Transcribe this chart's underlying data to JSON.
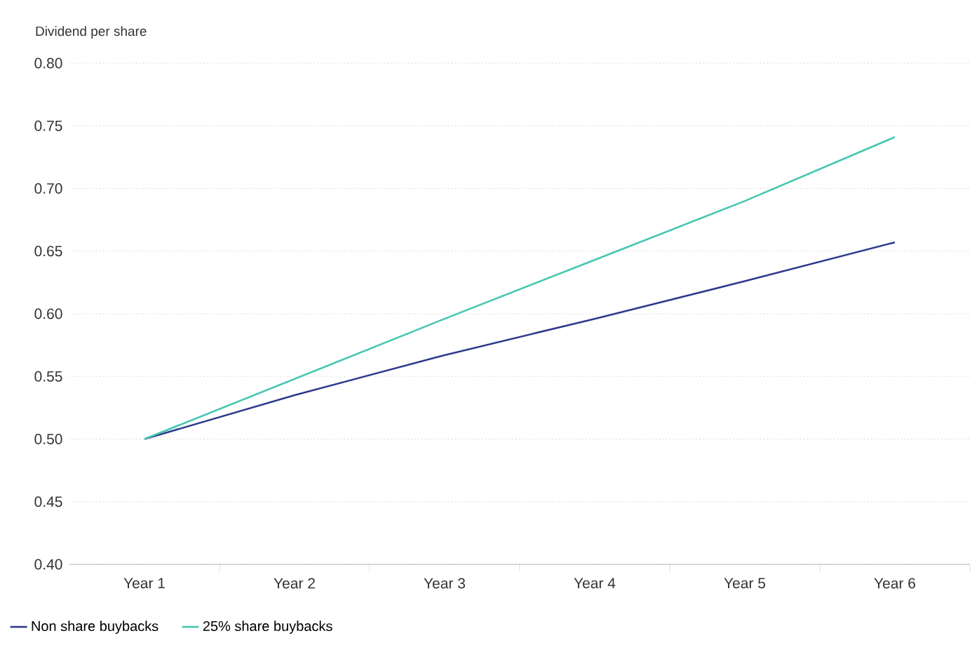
{
  "chart_data": {
    "type": "line",
    "ylabel": "Dividend per share",
    "categories": [
      "Year 1",
      "Year 2",
      "Year 3",
      "Year 4",
      "Year 5",
      "Year 6"
    ],
    "series": [
      {
        "name": "Non share buybacks",
        "color": "#2e3a8c",
        "values": [
          0.5,
          0.535,
          0.567,
          0.596,
          0.626,
          0.657
        ]
      },
      {
        "name": "25% share buybacks",
        "color": "#45c7b0",
        "values": [
          0.5,
          0.548,
          0.596,
          0.643,
          0.69,
          0.741
        ]
      }
    ],
    "ylim": [
      0.4,
      0.8
    ],
    "yticks": [
      {
        "value": 0.4,
        "label": "0.40"
      },
      0.45,
      {
        "value": 0.5,
        "label": "0.50"
      },
      0.55,
      {
        "value": 0.6,
        "label": "0.60"
      },
      0.65,
      {
        "value": 0.7,
        "label": "0.70"
      },
      0.75,
      {
        "value": 0.8,
        "label": "0.80"
      }
    ],
    "grid": "y",
    "legend": "bottom left",
    "line_style": "solid",
    "marker": "none"
  }
}
